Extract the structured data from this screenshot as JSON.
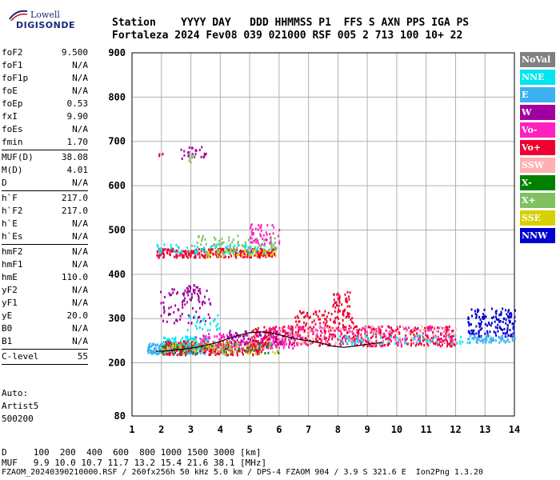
{
  "logo": {
    "line1": "Lowell",
    "line2": "DIGISONDE"
  },
  "header": {
    "row1": "Station    YYYY DAY   DDD HHMMSS P1  FFS S AXN PPS IGA PS",
    "row2": "Fortaleza 2024 Fev08 039 021000 RSF 005 2 713 100 10+ 22"
  },
  "params": [
    {
      "name": "foF2",
      "value": "9.500"
    },
    {
      "name": "foF1",
      "value": "N/A"
    },
    {
      "name": "foF1p",
      "value": "N/A"
    },
    {
      "name": "foE",
      "value": "N/A"
    },
    {
      "name": "foEp",
      "value": "0.53"
    },
    {
      "name": "fxI",
      "value": "9.90"
    },
    {
      "name": "foEs",
      "value": "N/A"
    },
    {
      "name": "fmin",
      "value": "1.70"
    },
    {
      "name": "MUF(D)",
      "value": "38.08"
    },
    {
      "name": "M(D)",
      "value": "4.01"
    },
    {
      "name": "D",
      "value": "N/A"
    },
    {
      "name": "h`F",
      "value": "217.0"
    },
    {
      "name": "h`F2",
      "value": "217.0"
    },
    {
      "name": "h`E",
      "value": "N/A"
    },
    {
      "name": "h`Es",
      "value": "N/A"
    },
    {
      "name": "hmF2",
      "value": "N/A"
    },
    {
      "name": "hmF1",
      "value": "N/A"
    },
    {
      "name": "hmE",
      "value": "110.0"
    },
    {
      "name": "yF2",
      "value": "N/A"
    },
    {
      "name": "yF1",
      "value": "N/A"
    },
    {
      "name": "yE",
      "value": "20.0"
    },
    {
      "name": "B0",
      "value": "N/A"
    },
    {
      "name": "B1",
      "value": "N/A"
    },
    {
      "name": "C-level",
      "value": "55"
    }
  ],
  "auto": {
    "line1": "Auto:",
    "line2": "Artist5",
    "line3": "500200"
  },
  "legend": [
    {
      "label": "NoVal",
      "color": "#808080"
    },
    {
      "label": "NNE",
      "color": "#00e5ee"
    },
    {
      "label": "E",
      "color": "#3cb0f0"
    },
    {
      "label": "W",
      "color": "#a000a0"
    },
    {
      "label": "Vo-",
      "color": "#ff20c0"
    },
    {
      "label": "Vo+",
      "color": "#ee0030"
    },
    {
      "label": "SSW",
      "color": "#ffb0b0"
    },
    {
      "label": "X-",
      "color": "#008000"
    },
    {
      "label": "X+",
      "color": "#80c060"
    },
    {
      "label": "SSE",
      "color": "#d8d000"
    },
    {
      "label": "NNW",
      "color": "#0000d0"
    }
  ],
  "footer": {
    "line1": "D     100  200  400  600  800 1000 1500 3000 [km]",
    "line2": "MUF   9.9 10.0 10.7 11.7 13.2 15.4 21.6 38.1 [MHz]",
    "line3": "FZAOM_20240390210000.RSF / 260fx256h 50 kHz 5.0 km / DPS-4 FZAOM 904 / 3.9 S 321.6 E  Ion2Png 1.3.20"
  },
  "chart_data": {
    "type": "scatter",
    "title": "",
    "xlabel": "",
    "ylabel": "",
    "xlim": [
      1,
      14
    ],
    "ylim": [
      80,
      900
    ],
    "x_ticks": [
      1,
      2,
      3,
      4,
      5,
      6,
      7,
      8,
      9,
      10,
      11,
      12,
      13,
      14
    ],
    "y_ticks": [
      80,
      200,
      300,
      400,
      500,
      600,
      700,
      800,
      900
    ],
    "grid": true,
    "trace": {
      "x": [
        1.8,
        2.2,
        2.6,
        3.0,
        3.4,
        3.8,
        4.2,
        4.6,
        5.0,
        5.4,
        5.8,
        6.2,
        6.6,
        7.0,
        7.4,
        7.8,
        8.2,
        8.6,
        9.0,
        9.5
      ],
      "y": [
        226,
        227,
        230,
        233,
        238,
        244,
        253,
        262,
        268,
        270,
        267,
        260,
        254,
        250,
        245,
        238,
        235,
        238,
        242,
        246
      ]
    },
    "clusters": [
      {
        "series": "E",
        "x": [
          1.5,
          3.5
        ],
        "y": [
          222,
          246
        ],
        "n": 260
      },
      {
        "series": "NNE",
        "x": [
          2.0,
          3.6
        ],
        "y": [
          232,
          262
        ],
        "n": 120
      },
      {
        "series": "Vo+",
        "x": [
          2.0,
          5.5
        ],
        "y": [
          220,
          252
        ],
        "n": 260
      },
      {
        "series": "Vo-",
        "x": [
          3.0,
          6.5
        ],
        "y": [
          235,
          268
        ],
        "n": 160
      },
      {
        "series": "W",
        "x": [
          4.2,
          6.5
        ],
        "y": [
          240,
          275
        ],
        "n": 90
      },
      {
        "series": "X+",
        "x": [
          2.0,
          6.0
        ],
        "y": [
          222,
          250
        ],
        "n": 80
      },
      {
        "series": "X-",
        "x": [
          2.0,
          6.0
        ],
        "y": [
          222,
          248
        ],
        "n": 40
      },
      {
        "series": "SSE",
        "x": [
          2.0,
          6.0
        ],
        "y": [
          222,
          248
        ],
        "n": 50
      },
      {
        "series": "Vo+",
        "x": [
          5.0,
          12.0
        ],
        "y": [
          240,
          285
        ],
        "n": 420
      },
      {
        "series": "Vo-",
        "x": [
          5.5,
          12.0
        ],
        "y": [
          240,
          285
        ],
        "n": 170
      },
      {
        "series": "SSW",
        "x": [
          6.0,
          12.0
        ],
        "y": [
          245,
          285
        ],
        "n": 110
      },
      {
        "series": "NNE",
        "x": [
          2.8,
          4.0
        ],
        "y": [
          275,
          310
        ],
        "n": 30
      },
      {
        "series": "Vo+",
        "x": [
          6.5,
          8.5
        ],
        "y": [
          285,
          320
        ],
        "n": 70
      },
      {
        "series": "Vo+",
        "x": [
          7.8,
          8.4
        ],
        "y": [
          310,
          365
        ],
        "n": 45
      },
      {
        "series": "NNE",
        "x": [
          8.0,
          12.5
        ],
        "y": [
          245,
          265
        ],
        "n": 60
      },
      {
        "series": "NNW",
        "x": [
          12.4,
          14.0
        ],
        "y": [
          260,
          325
        ],
        "n": 150
      },
      {
        "series": "E",
        "x": [
          12.4,
          14.0
        ],
        "y": [
          248,
          265
        ],
        "n": 60
      },
      {
        "series": "W",
        "x": [
          1.9,
          3.7
        ],
        "y": [
          290,
          370
        ],
        "n": 70
      },
      {
        "series": "W",
        "x": [
          2.7,
          3.3
        ],
        "y": [
          340,
          380
        ],
        "n": 35
      },
      {
        "series": "Vo+",
        "x": [
          1.8,
          5.9
        ],
        "y": [
          440,
          460
        ],
        "n": 260
      },
      {
        "series": "NNE",
        "x": [
          1.8,
          5.9
        ],
        "y": [
          448,
          470
        ],
        "n": 90
      },
      {
        "series": "SSE",
        "x": [
          3.5,
          5.9
        ],
        "y": [
          442,
          458
        ],
        "n": 50
      },
      {
        "series": "X+",
        "x": [
          3.0,
          5.9
        ],
        "y": [
          460,
          490
        ],
        "n": 60
      },
      {
        "series": "Vo-",
        "x": [
          5.0,
          6.0
        ],
        "y": [
          470,
          515
        ],
        "n": 50
      },
      {
        "series": "W",
        "x": [
          2.6,
          3.5
        ],
        "y": [
          660,
          690
        ],
        "n": 25
      },
      {
        "series": "Vo+",
        "x": [
          1.9,
          2.1
        ],
        "y": [
          668,
          676
        ],
        "n": 4
      },
      {
        "series": "X+",
        "x": [
          2.9,
          3.1
        ],
        "y": [
          655,
          670
        ],
        "n": 6
      }
    ]
  }
}
